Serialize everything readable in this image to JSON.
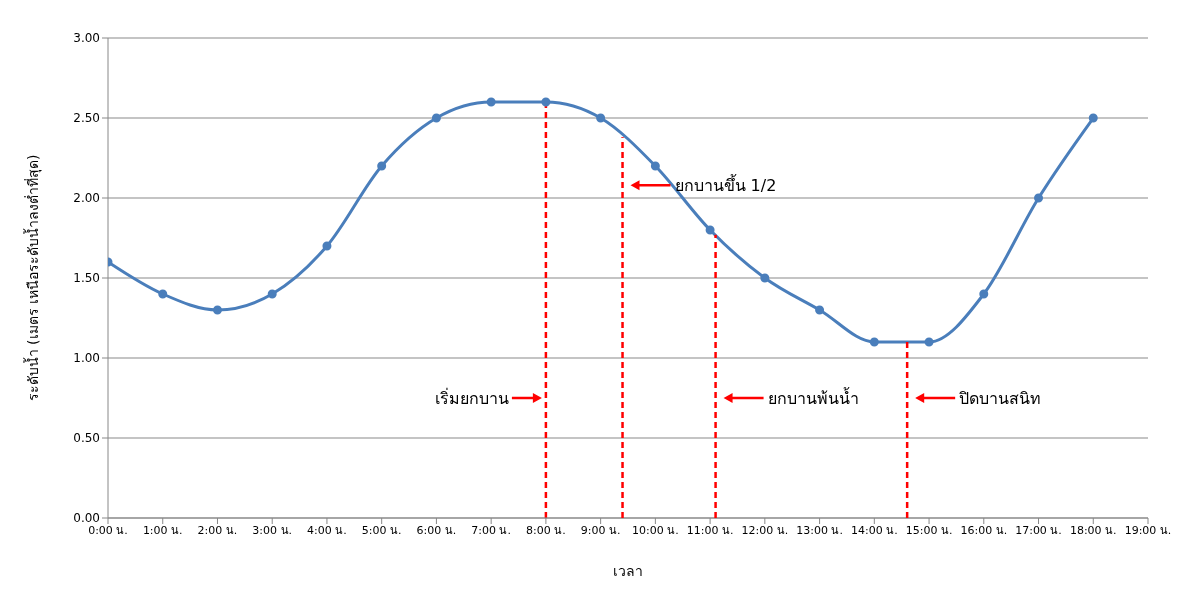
{
  "chart_data": {
    "type": "line",
    "xlabel": "เวลา",
    "ylabel": "ระดับน้ำ (เมตร เหนือระดับน้ำลงต่ำที่สุด)",
    "categories": [
      "0:00 น.",
      "1:00 น.",
      "2:00 น.",
      "3:00 น.",
      "4:00 น.",
      "5:00 น.",
      "6:00 น.",
      "7:00 น.",
      "8:00 น.",
      "9:00 น.",
      "10:00 น.",
      "11:00 น.",
      "12:00 น.",
      "13:00 น.",
      "14:00 น.",
      "15:00 น.",
      "16:00 น.",
      "17:00 น.",
      "18:00 น.",
      "19:00 น."
    ],
    "series": [
      {
        "color": "#4a7ebb",
        "values": [
          1.6,
          1.4,
          1.3,
          1.4,
          1.7,
          2.2,
          2.5,
          2.6,
          2.6,
          2.5,
          2.2,
          1.8,
          1.5,
          1.3,
          1.1,
          1.1,
          1.4,
          2.0,
          2.5,
          null
        ]
      }
    ],
    "ylim": [
      0,
      3
    ],
    "yticks": [
      {
        "value": 0,
        "label": "0.00"
      },
      {
        "value": 0.5,
        "label": "0.50"
      },
      {
        "value": 1,
        "label": "1.00"
      },
      {
        "value": 1.5,
        "label": "1.50"
      },
      {
        "value": 2,
        "label": "2.00"
      },
      {
        "value": 2.5,
        "label": "2.50"
      },
      {
        "value": 3,
        "label": "3.00"
      }
    ],
    "ref_lines": [
      {
        "axis": "x",
        "value": "8:00 น.",
        "label": "เริ่มยกบาน",
        "color": "#ff0000",
        "line_style": "dashed"
      }
    ],
    "annotations": [
      "ยกบานขึ้น 1/2",
      "ยกบานพ้นน้ำ",
      "ปิดบานสนิท"
    ],
    "grid": "y",
    "marker": "circle",
    "line_style": "solid"
  }
}
